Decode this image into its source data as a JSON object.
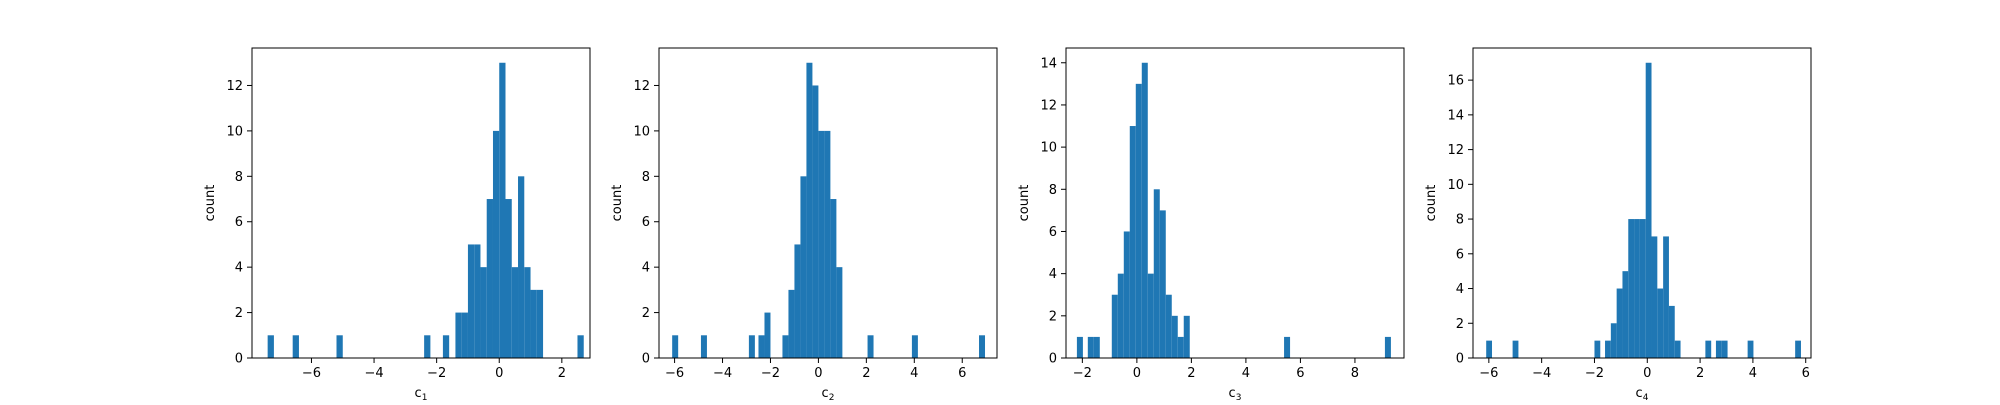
{
  "figure": {
    "background": "#ffffff",
    "bar_color": "#1f77b4"
  },
  "chart_data": [
    {
      "type": "bar",
      "title": "",
      "xlabel_base": "c",
      "xlabel_sub": "1",
      "ylabel": "count",
      "xlim": [
        -7.9,
        2.9
      ],
      "ylim": [
        0,
        13.65
      ],
      "xticks": [
        -6,
        -4,
        -2,
        0,
        2
      ],
      "xtick_labels": [
        "−6",
        "−4",
        "−2",
        "0",
        "2"
      ],
      "yticks": [
        0,
        2,
        4,
        6,
        8,
        10,
        12
      ],
      "bin_width": 0.2,
      "series": [
        {
          "bin_start": [
            -7.4,
            -6.6,
            -5.2,
            -2.4,
            -1.8,
            -1.4,
            -1.2,
            -1.0,
            -0.8,
            -0.6,
            -0.4,
            -0.2,
            0.0,
            0.2,
            0.4,
            0.6,
            0.8,
            1.0,
            1.2,
            2.5
          ],
          "values": [
            1,
            1,
            1,
            1,
            1,
            2,
            2,
            5,
            5,
            4,
            7,
            10,
            13,
            7,
            4,
            8,
            4,
            3,
            3,
            1
          ]
        }
      ]
    },
    {
      "type": "bar",
      "title": "",
      "xlabel_base": "c",
      "xlabel_sub": "2",
      "ylabel": "count",
      "xlim": [
        -6.65,
        7.45
      ],
      "ylim": [
        0,
        13.65
      ],
      "xticks": [
        -6,
        -4,
        -2,
        0,
        2,
        4,
        6
      ],
      "xtick_labels": [
        "−6",
        "−4",
        "−2",
        "0",
        "2",
        "4",
        "6"
      ],
      "yticks": [
        0,
        2,
        4,
        6,
        8,
        10,
        12
      ],
      "bin_width": 0.25,
      "series": [
        {
          "bin_start": [
            -6.1,
            -4.9,
            -2.9,
            -2.5,
            -2.25,
            -1.5,
            -1.25,
            -1.0,
            -0.75,
            -0.5,
            -0.25,
            0.0,
            0.25,
            0.5,
            0.75,
            1.0,
            2.05,
            3.9,
            6.7
          ],
          "values": [
            1,
            1,
            1,
            1,
            2,
            1,
            3,
            5,
            8,
            13,
            12,
            10,
            10,
            7,
            4,
            0,
            1,
            1,
            1
          ]
        }
      ]
    },
    {
      "type": "bar",
      "title": "",
      "xlabel_base": "c",
      "xlabel_sub": "3",
      "ylabel": "count",
      "xlim": [
        -2.6,
        9.8
      ],
      "ylim": [
        0,
        14.7
      ],
      "xticks": [
        -2,
        0,
        2,
        4,
        6,
        8
      ],
      "xtick_labels": [
        "−2",
        "0",
        "2",
        "4",
        "6",
        "8"
      ],
      "yticks": [
        0,
        2,
        4,
        6,
        8,
        10,
        12,
        14
      ],
      "bin_width": 0.22,
      "series": [
        {
          "bin_start": [
            -2.2,
            -1.8,
            -1.58,
            -1.36,
            -0.92,
            -0.7,
            -0.48,
            -0.26,
            -0.04,
            0.18,
            0.4,
            0.62,
            0.84,
            1.06,
            1.28,
            1.5,
            1.72,
            5.4,
            9.1
          ],
          "values": [
            1,
            1,
            1,
            0,
            3,
            4,
            6,
            11,
            13,
            14,
            4,
            8,
            7,
            3,
            2,
            1,
            2,
            1,
            1
          ]
        }
      ]
    },
    {
      "type": "bar",
      "title": "",
      "xlabel_base": "c",
      "xlabel_sub": "4",
      "ylabel": "count",
      "xlim": [
        -6.6,
        6.2
      ],
      "ylim": [
        0,
        17.85
      ],
      "xticks": [
        -6,
        -4,
        -2,
        0,
        2,
        4,
        6
      ],
      "xtick_labels": [
        "−6",
        "−4",
        "−2",
        "0",
        "2",
        "4",
        "6"
      ],
      "yticks": [
        0,
        2,
        4,
        6,
        8,
        10,
        12,
        14,
        16
      ],
      "bin_width": 0.22,
      "series": [
        {
          "bin_start": [
            -6.1,
            -5.1,
            -2.0,
            -1.6,
            -1.38,
            -1.16,
            -0.94,
            -0.72,
            -0.5,
            -0.28,
            -0.06,
            0.16,
            0.38,
            0.6,
            0.82,
            1.04,
            2.2,
            2.6,
            2.82,
            3.8,
            5.6
          ],
          "values": [
            1,
            1,
            1,
            1,
            2,
            4,
            5,
            8,
            8,
            8,
            17,
            7,
            4,
            7,
            3,
            1,
            1,
            1,
            1,
            1,
            1
          ]
        }
      ]
    }
  ]
}
